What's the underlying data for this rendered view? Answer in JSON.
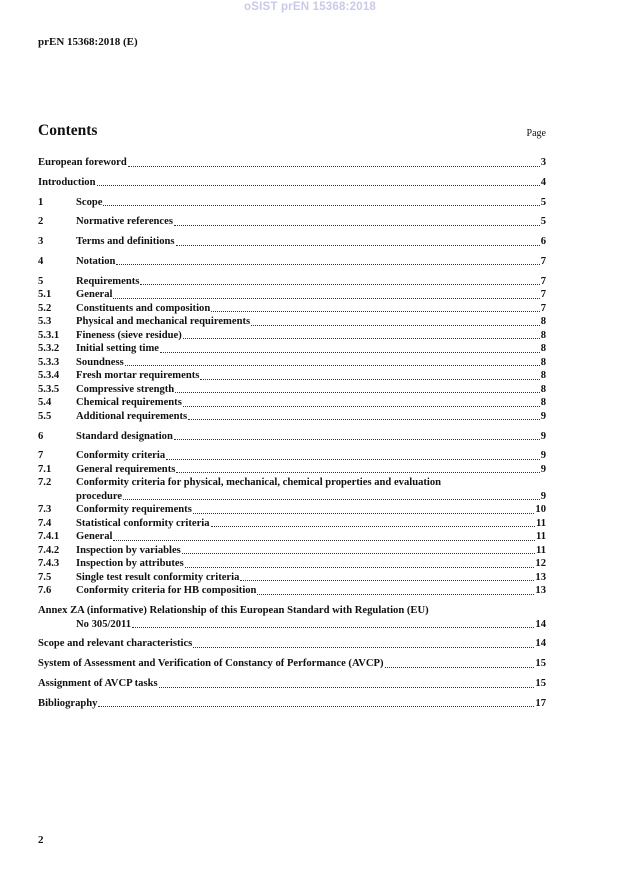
{
  "watermark": "oSIST prEN 15368:2018",
  "header": "prEN 15368:2018 (E)",
  "contents_title": "Contents",
  "page_label": "Page",
  "entries": [
    {
      "num": "",
      "text": "European foreword",
      "page": "3"
    },
    {
      "num": "",
      "text": "Introduction",
      "page": "4"
    },
    {
      "num": "1",
      "text": "Scope",
      "page": "5"
    },
    {
      "num": "2",
      "text": "Normative references",
      "page": "5"
    },
    {
      "num": "3",
      "text": "Terms and definitions",
      "page": "6"
    },
    {
      "num": "4",
      "text": "Notation",
      "page": "7"
    },
    {
      "num": "5",
      "text": "Requirements",
      "page": "7"
    },
    {
      "num": "5.1",
      "text": "General",
      "page": "7"
    },
    {
      "num": "5.2",
      "text": "Constituents and composition",
      "page": "7"
    },
    {
      "num": "5.3",
      "text": "Physical and mechanical requirements",
      "page": "8"
    },
    {
      "num": "5.3.1",
      "text": "Fineness (sieve residue)",
      "page": "8"
    },
    {
      "num": "5.3.2",
      "text": "Initial setting time",
      "page": "8"
    },
    {
      "num": "5.3.3",
      "text": "Soundness",
      "page": "8"
    },
    {
      "num": "5.3.4",
      "text": "Fresh mortar requirements",
      "page": "8"
    },
    {
      "num": "5.3.5",
      "text": "Compressive strength",
      "page": "8"
    },
    {
      "num": "5.4",
      "text": "Chemical requirements",
      "page": "8"
    },
    {
      "num": "5.5",
      "text": "Additional requirements",
      "page": "9"
    },
    {
      "num": "6",
      "text": "Standard designation",
      "page": "9"
    },
    {
      "num": "7",
      "text": "Conformity criteria",
      "page": "9"
    },
    {
      "num": "7.1",
      "text": "General requirements",
      "page": "9"
    },
    {
      "num": "7.2",
      "text": "Conformity criteria for physical, mechanical, chemical properties and evaluation",
      "text2": "procedure",
      "page": "9"
    },
    {
      "num": "7.3",
      "text": "Conformity requirements",
      "page": "10"
    },
    {
      "num": "7.4",
      "text": "Statistical conformity criteria",
      "page": "11"
    },
    {
      "num": "7.4.1",
      "text": "General",
      "page": "11"
    },
    {
      "num": "7.4.2",
      "text": "Inspection by variables",
      "page": "11"
    },
    {
      "num": "7.4.3",
      "text": "Inspection by attributes",
      "page": "12"
    },
    {
      "num": "7.5",
      "text": "Single test result conformity criteria",
      "page": "13"
    },
    {
      "num": "7.6",
      "text": "Conformity criteria for HB composition",
      "page": "13"
    },
    {
      "num": "",
      "text": "Annex ZA (informative)  Relationship of this European Standard with Regulation (EU)",
      "text2": "No 305/2011",
      "page": "14"
    },
    {
      "num": "",
      "text": "Scope and relevant characteristics",
      "page": "14"
    },
    {
      "num": "",
      "text": "System of Assessment and Verification of Constancy of Performance (AVCP)",
      "page": "15"
    },
    {
      "num": "",
      "text": "Assignment of AVCP tasks",
      "page": "15"
    },
    {
      "num": "",
      "text": "Bibliography",
      "page": "17"
    }
  ],
  "page_number": "2"
}
